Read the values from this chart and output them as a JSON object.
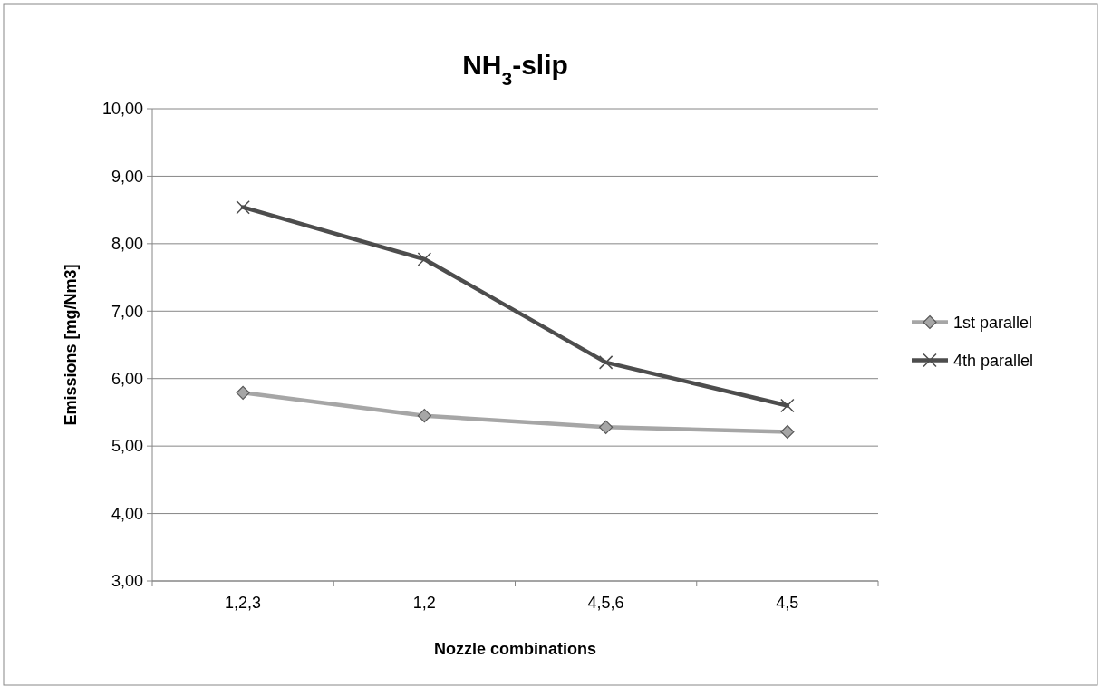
{
  "chart_data": {
    "type": "line",
    "title": "NH$_{3}$-slip",
    "xlabel": "Nozzle combinations",
    "ylabel": "Emissions [mg/Nm3]",
    "categories": [
      "1,2,3",
      "1,2",
      "4,5,6",
      "4,5"
    ],
    "series": [
      {
        "name": "1st parallel",
        "color": "#a6a6a6",
        "marker": "diamond",
        "values": [
          5.79,
          5.45,
          5.28,
          5.21
        ]
      },
      {
        "name": "4th parallel",
        "color": "#4d4d4d",
        "marker": "cross",
        "values": [
          8.54,
          7.77,
          6.24,
          5.6
        ]
      }
    ],
    "ylim": [
      3,
      10
    ],
    "yticks": [
      {
        "value": 3,
        "label": "3,00"
      },
      {
        "value": 4,
        "label": "4,00"
      },
      {
        "value": 5,
        "label": "5,00"
      },
      {
        "value": 6,
        "label": "6,00"
      },
      {
        "value": 7,
        "label": "7,00"
      },
      {
        "value": 8,
        "label": "8,00"
      },
      {
        "value": 9,
        "label": "9,00"
      },
      {
        "value": 10,
        "label": "10,00"
      }
    ],
    "grid": "y",
    "legend": "right",
    "line_style": "solid"
  }
}
